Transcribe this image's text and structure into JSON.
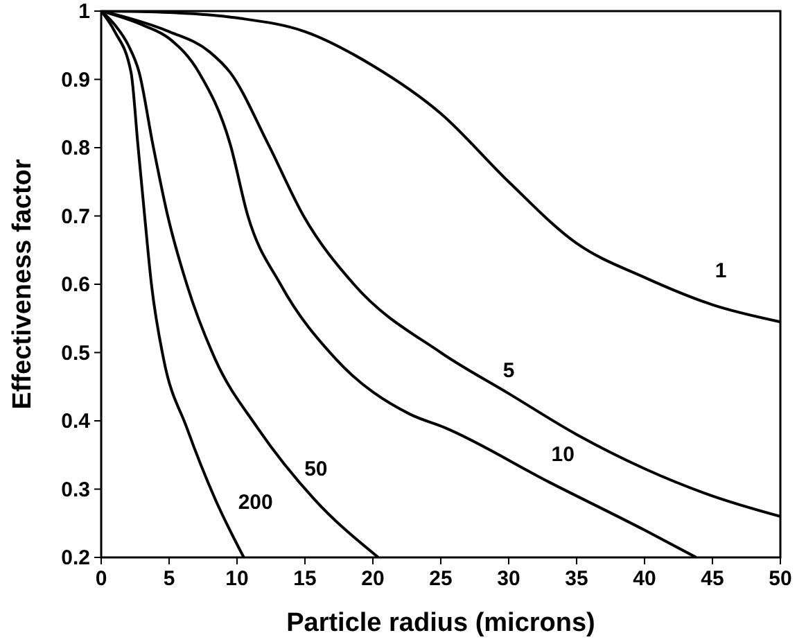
{
  "chart_data": {
    "type": "line",
    "xlabel": "Particle radius (microns)",
    "ylabel": "Effectiveness factor",
    "xlim": [
      0,
      50
    ],
    "ylim": [
      0.2,
      1
    ],
    "xticks": [
      0,
      5,
      10,
      15,
      20,
      25,
      30,
      35,
      40,
      45,
      50
    ],
    "yticks": [
      0.2,
      0.3,
      0.4,
      0.5,
      0.6,
      0.7,
      0.8,
      0.9,
      1
    ],
    "grid": false,
    "marker": "none",
    "line_style": "solid",
    "series": [
      {
        "name": "1",
        "color": "#000000",
        "x": [
          0,
          5,
          10,
          15,
          20,
          25,
          30,
          35,
          40,
          45,
          50
        ],
        "values": [
          1,
          0.998,
          0.99,
          0.97,
          0.92,
          0.85,
          0.75,
          0.66,
          0.61,
          0.57,
          0.545
        ]
      },
      {
        "name": "5",
        "color": "#000000",
        "x": [
          0,
          2,
          5,
          8,
          9.5,
          12.3,
          14.9,
          18.6,
          25,
          30,
          35,
          40,
          45,
          50
        ],
        "values": [
          1,
          0.99,
          0.97,
          0.94,
          0.91,
          0.805,
          0.7,
          0.6,
          0.5,
          0.44,
          0.38,
          0.33,
          0.29,
          0.26
        ]
      },
      {
        "name": "10",
        "color": "#000000",
        "x": [
          0,
          3,
          5,
          7.2,
          9.5,
          10.8,
          13.2,
          17.3,
          22.7,
          25.3,
          33,
          40,
          43.8
        ],
        "values": [
          1,
          0.98,
          0.96,
          0.91,
          0.805,
          0.7,
          0.6,
          0.49,
          0.41,
          0.39,
          0.31,
          0.24,
          0.2
        ]
      },
      {
        "name": "50",
        "color": "#000000",
        "x": [
          0,
          1,
          2,
          2.8,
          3.8,
          4.9,
          6.3,
          8.4,
          11.5,
          15.7,
          20.4
        ],
        "values": [
          1,
          0.98,
          0.95,
          0.91,
          0.805,
          0.7,
          0.6,
          0.49,
          0.39,
          0.285,
          0.2
        ]
      },
      {
        "name": "200",
        "color": "#000000",
        "x": [
          0,
          1,
          2.2,
          2.7,
          3.2,
          3.7,
          4.6,
          6.3,
          8.4,
          10.5
        ],
        "values": [
          1,
          0.97,
          0.91,
          0.805,
          0.7,
          0.6,
          0.49,
          0.39,
          0.285,
          0.2
        ]
      }
    ]
  }
}
